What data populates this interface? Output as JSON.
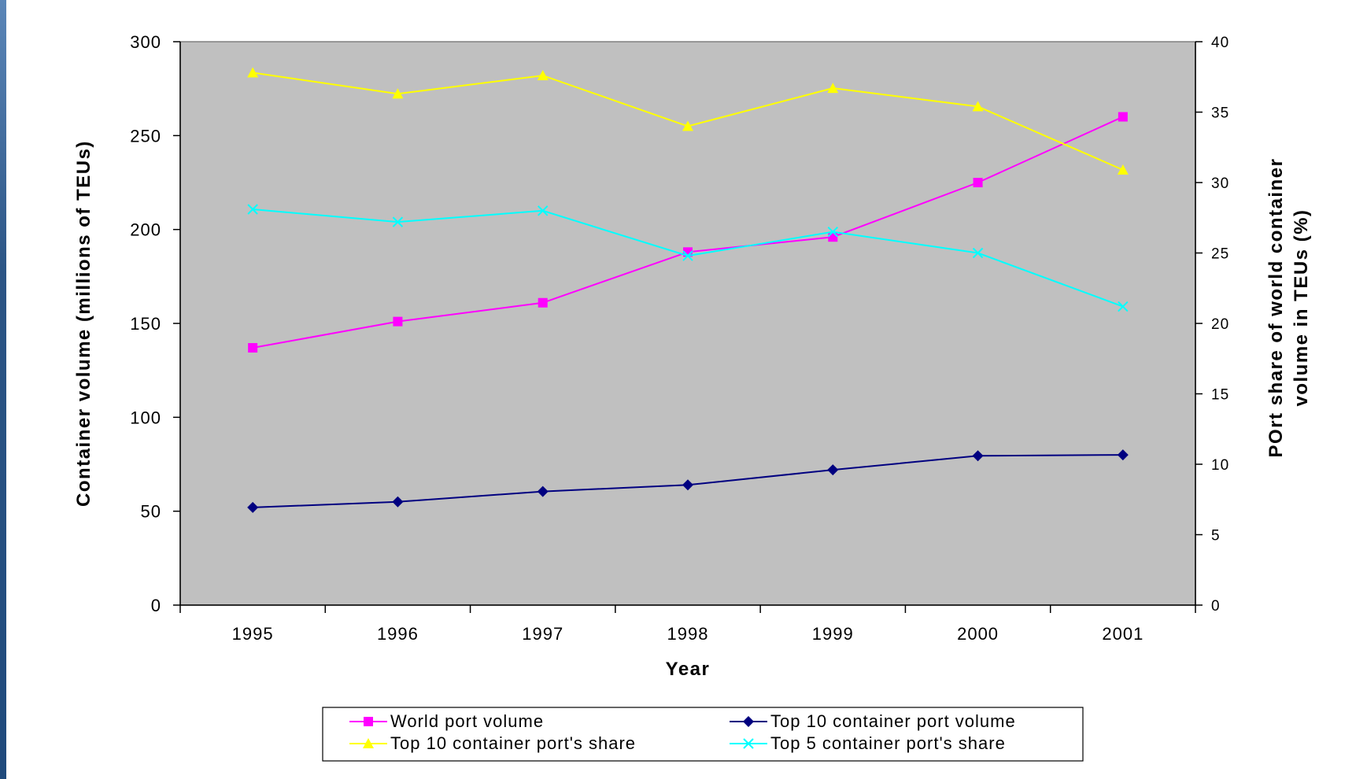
{
  "chart_data": {
    "type": "line",
    "x": [
      "1995",
      "1996",
      "1997",
      "1998",
      "1999",
      "2000",
      "2001"
    ],
    "xlabel": "Year",
    "ylabel_left": "Container volume (millions of TEUs)",
    "ylabel_right_line1": "POrt share of world container",
    "ylabel_right_line2": "volume in TEUs (%)",
    "ylim_left": [
      0,
      300
    ],
    "yticks_left": [
      "0",
      "50",
      "100",
      "150",
      "200",
      "250",
      "300"
    ],
    "ylim_right": [
      0,
      40
    ],
    "yticks_right": [
      "0",
      "5",
      "10",
      "15",
      "20",
      "25",
      "30",
      "35",
      "40"
    ],
    "plot_background": "#c0c0c0",
    "legend_placement": "bottom",
    "series": [
      {
        "name": "World port volume",
        "axis": "left",
        "color": "#ff00ff",
        "marker": "square",
        "values": [
          137,
          151,
          161,
          188,
          196,
          225,
          260
        ]
      },
      {
        "name": "Top 10 container port volume",
        "axis": "left",
        "color": "#000080",
        "marker": "diamond",
        "values": [
          52,
          55,
          60.5,
          64,
          72,
          79.5,
          80
        ]
      },
      {
        "name": "Top 10 container port's share",
        "axis": "right",
        "color": "#ffff00",
        "marker": "triangle",
        "values": [
          37.8,
          36.3,
          37.6,
          34.0,
          36.7,
          35.4,
          30.9
        ]
      },
      {
        "name": "Top 5 container port's share",
        "axis": "right",
        "color": "#00ffff",
        "marker": "x",
        "values": [
          28.1,
          27.2,
          28.0,
          24.8,
          26.5,
          25.0,
          21.2
        ]
      }
    ]
  }
}
